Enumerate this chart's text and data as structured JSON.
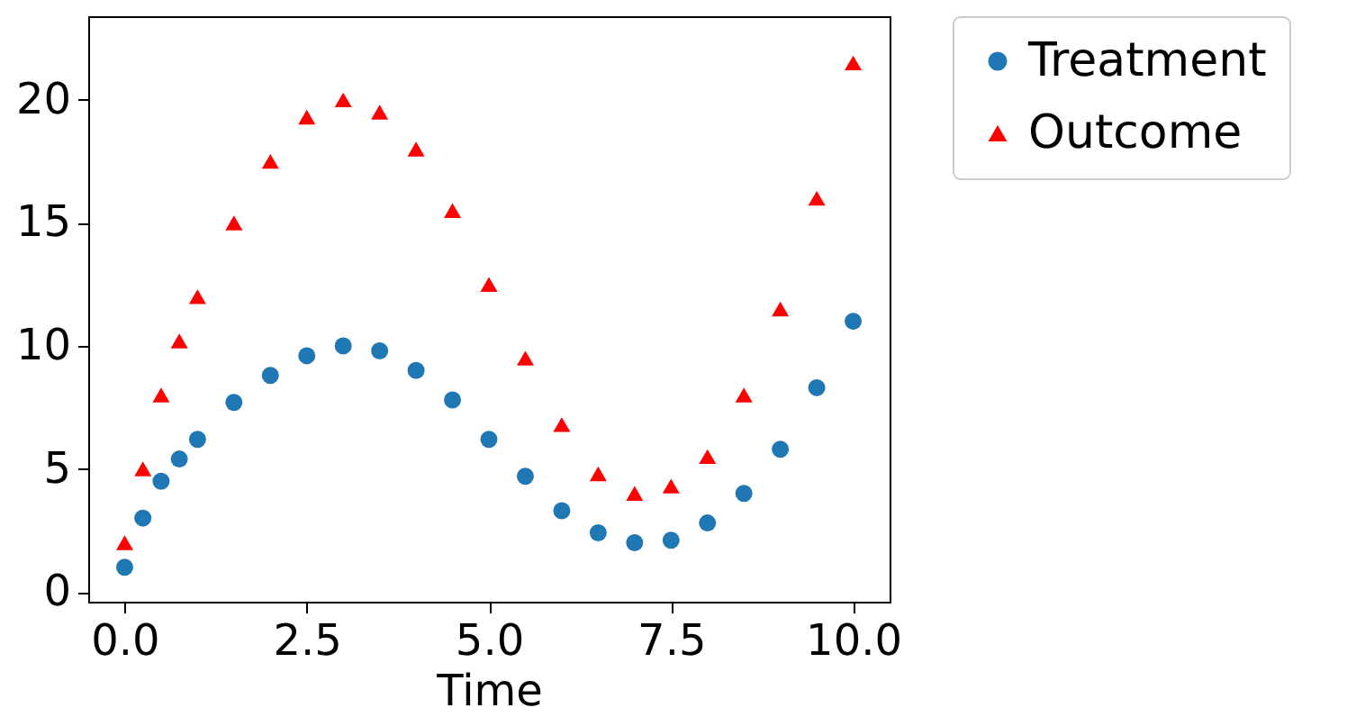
{
  "chart_data": {
    "type": "scatter",
    "xlabel": "Time",
    "xlim": [
      -0.5,
      10.5
    ],
    "ylim": [
      -0.4,
      23.4
    ],
    "xticks": [
      {
        "value": 0,
        "label": "0.0"
      },
      2.5,
      {
        "value": 5,
        "label": "5.0"
      },
      7.5,
      {
        "value": 10,
        "label": "10.0"
      }
    ],
    "yticks": [
      0,
      5,
      10,
      15,
      20
    ],
    "grid": false,
    "legend": "top right",
    "x": [
      0,
      0.25,
      0.5,
      0.75,
      1,
      1.5,
      2,
      2.5,
      3,
      3.5,
      4,
      4.5,
      5,
      5.5,
      6,
      6.5,
      7,
      7.5,
      8,
      8.5,
      9,
      9.5,
      10
    ],
    "series": [
      {
        "name": "Treatment",
        "color": "#1f77b4",
        "marker": "circle",
        "values": [
          1,
          3,
          4.5,
          5.4,
          6.2,
          7.7,
          8.8,
          9.6,
          10,
          9.8,
          9,
          7.8,
          6.2,
          4.7,
          3.3,
          2.4,
          2,
          2.1,
          2.8,
          4,
          5.8,
          8.3,
          11
        ]
      },
      {
        "name": "Outcome",
        "color": "#ff0000",
        "marker": "triangle",
        "values": [
          2,
          5,
          8,
          10.2,
          12,
          15,
          17.5,
          19.3,
          20,
          19.5,
          18,
          15.5,
          12.5,
          9.5,
          6.8,
          4.8,
          4,
          4.3,
          5.5,
          8,
          11.5,
          16,
          21.5
        ]
      }
    ]
  }
}
